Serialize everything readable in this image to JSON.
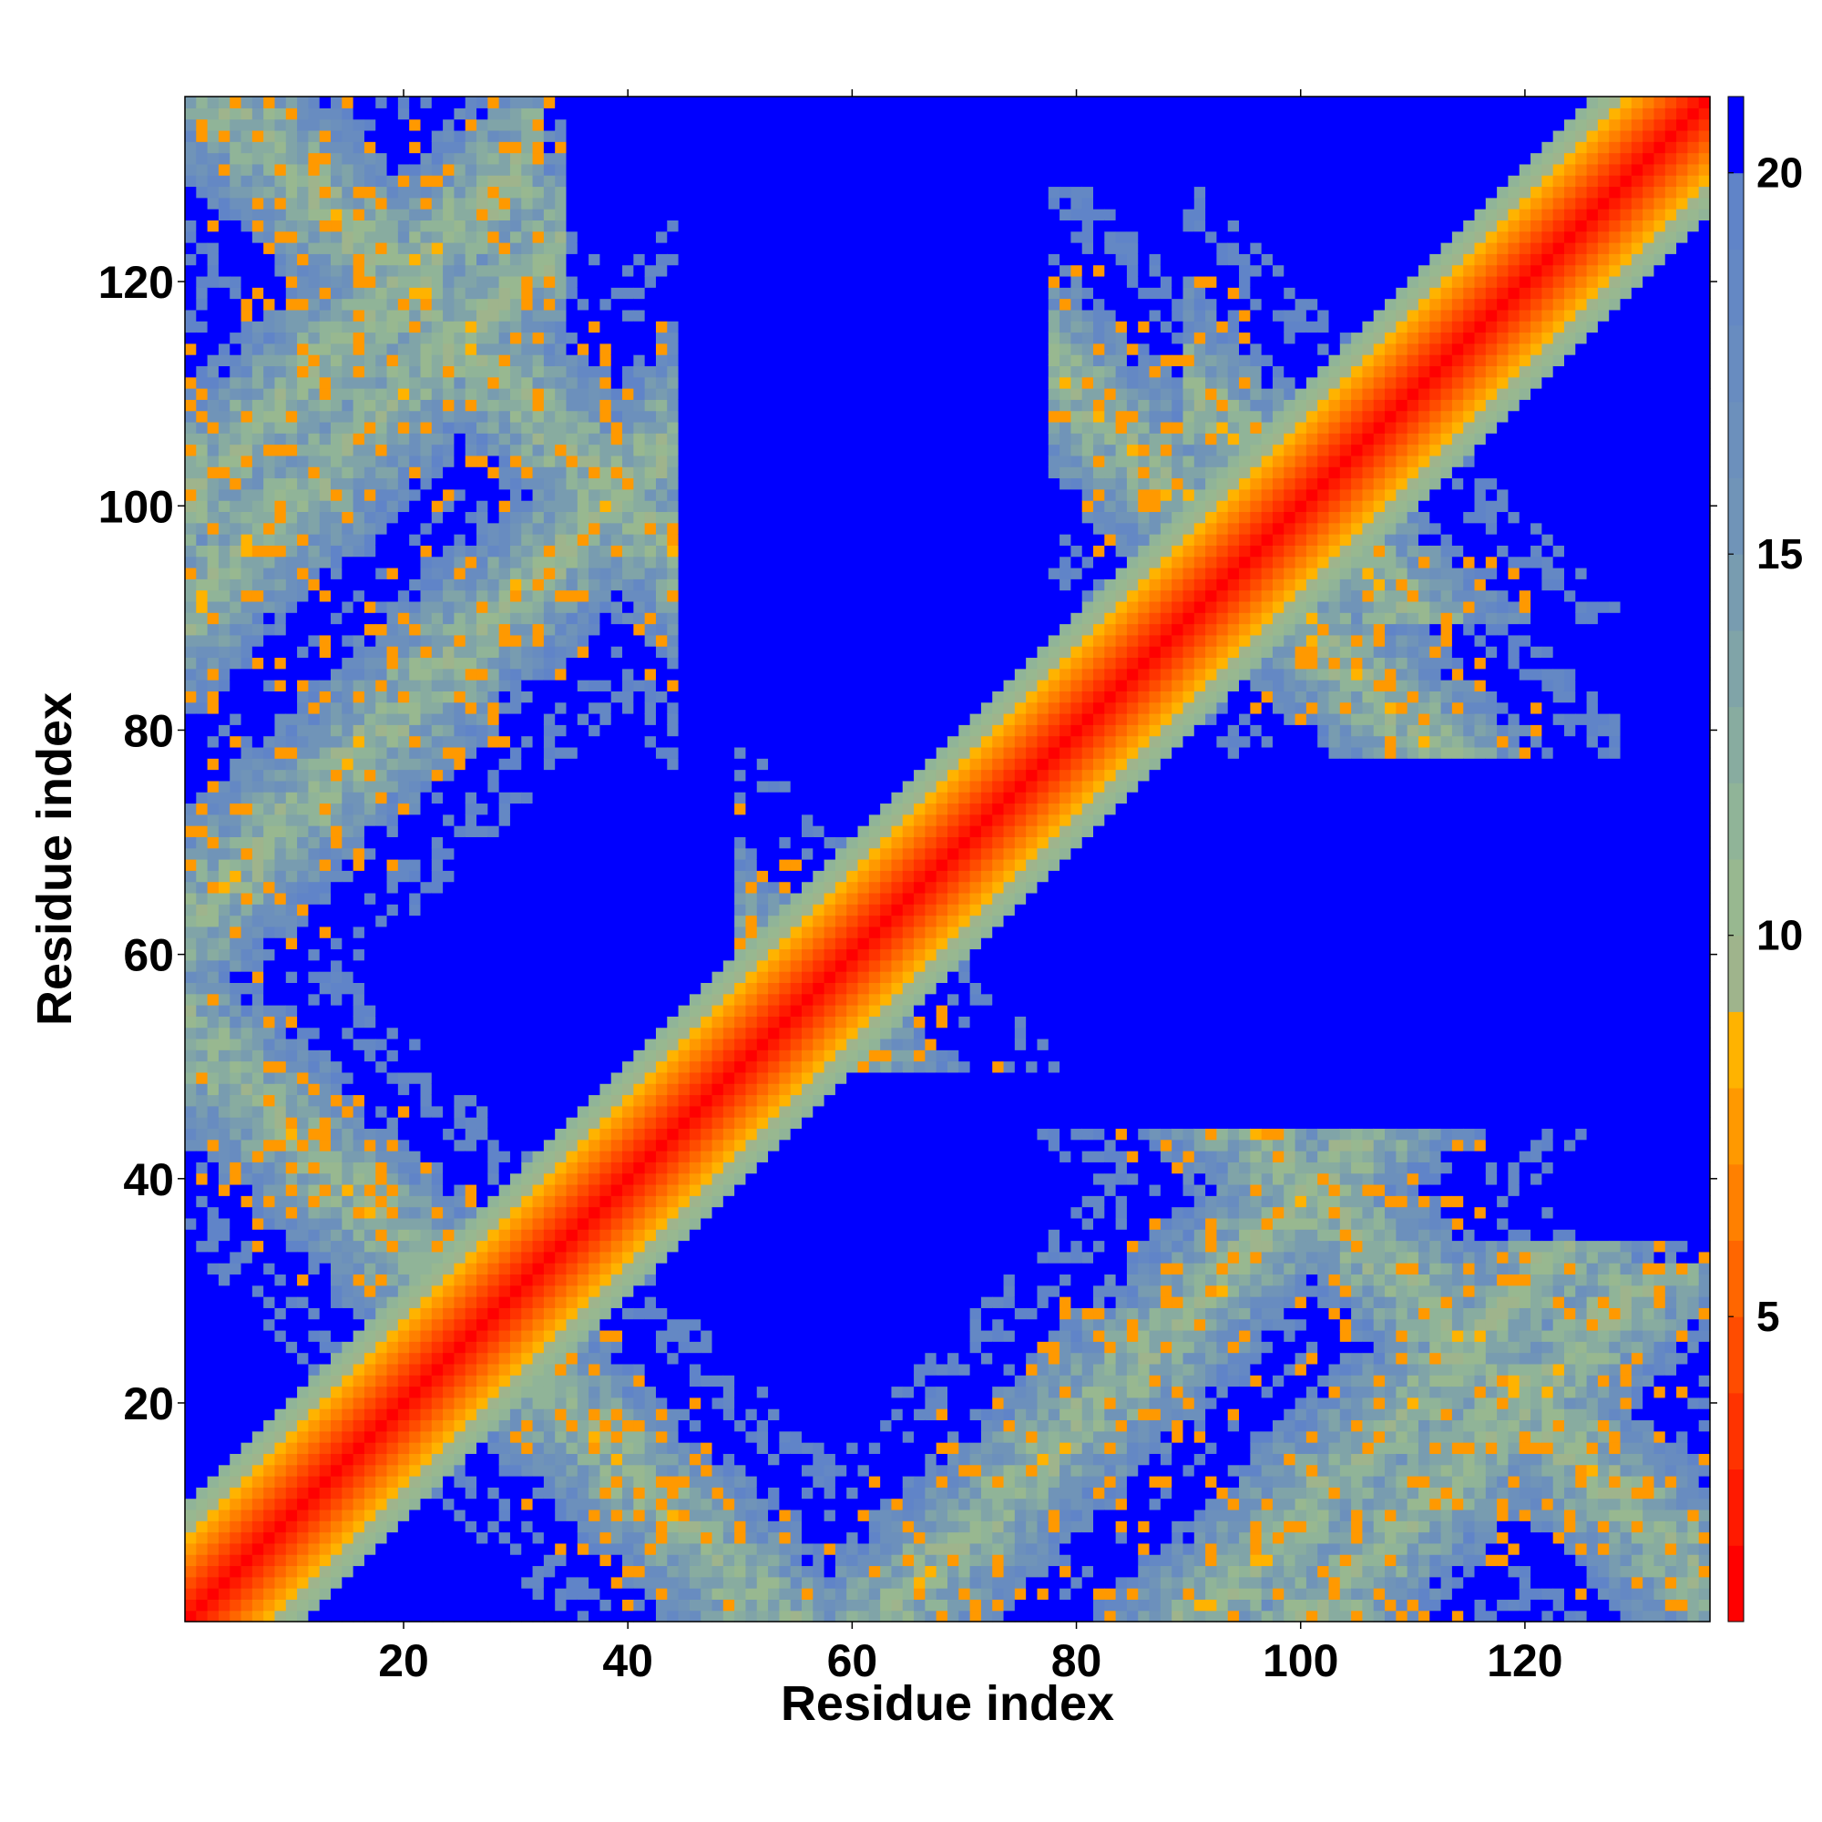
{
  "chart_data": {
    "type": "heatmap",
    "title": "",
    "xlabel": "Residue index",
    "ylabel": "Residue index",
    "n_residues": 136,
    "xlim": [
      1,
      136
    ],
    "ylim": [
      1,
      136
    ],
    "x_ticks": [
      20,
      40,
      60,
      80,
      100,
      120
    ],
    "x_tick_labels": [
      "20",
      "40",
      "60",
      "80",
      "100",
      "120"
    ],
    "y_ticks": [
      20,
      40,
      60,
      80,
      100,
      120
    ],
    "y_tick_labels": [
      "20",
      "40",
      "60",
      "80",
      "100",
      "120"
    ],
    "colorbar": {
      "range": [
        1,
        21
      ],
      "ticks": [
        5,
        10,
        15,
        20
      ],
      "tick_labels": [
        "5",
        "10",
        "15",
        "20"
      ],
      "color_bins": [
        {
          "max": 2,
          "color": "#ff0000"
        },
        {
          "max": 3,
          "color": "#ff1a00"
        },
        {
          "max": 4,
          "color": "#ff3300"
        },
        {
          "max": 5,
          "color": "#ff4c00"
        },
        {
          "max": 6,
          "color": "#ff6600"
        },
        {
          "max": 7,
          "color": "#ff8000"
        },
        {
          "max": 8,
          "color": "#ff9900"
        },
        {
          "max": 9,
          "color": "#ffb300"
        },
        {
          "max": 10,
          "color": "#9fb48c"
        },
        {
          "max": 11,
          "color": "#98b890"
        },
        {
          "max": 12,
          "color": "#90b498"
        },
        {
          "max": 13,
          "color": "#88aca0"
        },
        {
          "max": 14,
          "color": "#80a4a8"
        },
        {
          "max": 15,
          "color": "#789cb0"
        },
        {
          "max": 16,
          "color": "#7094b8"
        },
        {
          "max": 17,
          "color": "#6c90bc"
        },
        {
          "max": 18,
          "color": "#688cc0"
        },
        {
          "max": 19,
          "color": "#6488c4"
        },
        {
          "max": 20,
          "color": "#6084c8"
        },
        {
          "max": 21,
          "color": "#0000ff"
        }
      ]
    },
    "description_of_values": "Pairwise residue distance map; diagonal band near 0-9, off-diagonal contact bands with values 5-20, background 21 (blue).",
    "contact_bands": [
      {
        "axis": "antidiagonal",
        "sum": 54,
        "from": 1,
        "to": 54
      },
      {
        "axis": "antidiagonal",
        "sum": 110,
        "from": 54,
        "to": 80
      },
      {
        "axis": "antidiagonal",
        "sum": 190,
        "from": 82,
        "to": 136
      },
      {
        "axis": "antidiagonal",
        "sum": 140,
        "from": 3,
        "to": 40
      },
      {
        "axis": "antidiagonal",
        "sum": 200,
        "from": 94,
        "to": 108
      },
      {
        "axis": "parallel",
        "offset": 62,
        "from": 1,
        "to": 40
      },
      {
        "axis": "parallel",
        "offset": 100,
        "from": 3,
        "to": 28
      },
      {
        "axis": "parallel",
        "offset": 90,
        "from": 3,
        "to": 30
      }
    ],
    "grid": false,
    "legend": "none"
  }
}
